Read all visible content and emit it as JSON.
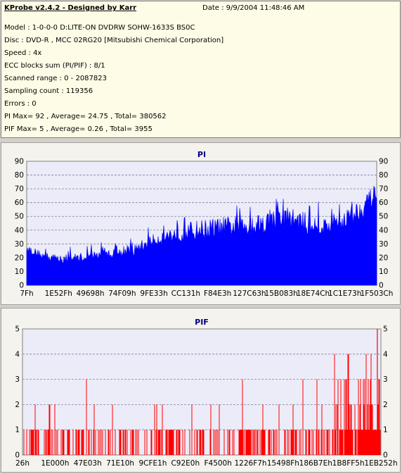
{
  "header": {
    "app_title": "KProbe v2.4.2 - Designed by Karr",
    "date": "Date : 9/9/2004 11:48:46 AM"
  },
  "info_lines": [
    "Model : 1-0-0-0 D:LITE-ON DVDRW SOHW-1633S BS0C",
    "Disc : DVD-R , MCC 02RG20   [Mitsubishi Chemical Corporation]",
    "Speed : 4x",
    "ECC blocks sum (PI/PIF) : 8/1",
    "Scanned range : 0 - 2087823",
    "Sampling count : 119356",
    "Errors : 0",
    "PI Max= 92 , Average= 24.75 , Total= 380562",
    "PIF Max= 5 , Average= 0.26 , Total= 3955"
  ],
  "colors": {
    "pi": "#0000ff",
    "pif": "#ff0000",
    "plot_bg": "#ececf8",
    "title": "#000080"
  },
  "chart_data": [
    {
      "type": "area",
      "title": "PI",
      "ylim": [
        0,
        90
      ],
      "y_ticks": [
        0,
        10,
        20,
        30,
        40,
        50,
        60,
        70,
        80,
        90
      ],
      "x_tick_labels": [
        "7Fh",
        "1E52Fh",
        "49698h",
        "74F09h",
        "9FE33h",
        "CC131h",
        "F84E3h",
        "127C63h",
        "15B083h",
        "18E74Ch",
        "1C1E73h",
        "1F503Ch"
      ],
      "grid": true,
      "x": [
        0,
        5,
        10,
        15,
        20,
        25,
        30,
        35,
        40,
        45,
        50,
        55,
        60,
        65,
        70,
        75,
        80,
        85,
        90,
        95,
        100
      ],
      "y_avg": [
        26,
        20,
        18,
        19,
        21,
        22,
        23,
        30,
        34,
        36,
        38,
        39,
        40,
        42,
        44,
        46,
        42,
        40,
        44,
        52,
        65
      ],
      "y_max": [
        32,
        27,
        25,
        27,
        28,
        30,
        33,
        40,
        47,
        52,
        55,
        57,
        58,
        60,
        62,
        66,
        60,
        57,
        62,
        70,
        80
      ]
    },
    {
      "type": "bar",
      "title": "PIF",
      "ylim": [
        0,
        5
      ],
      "y_ticks": [
        0,
        1,
        2,
        3,
        4,
        5
      ],
      "x_tick_labels": [
        "26h",
        "1E000h",
        "47E03h",
        "71E10h",
        "9CFE1h",
        "C92E0h",
        "F4500h",
        "1226F7h",
        "15498Fh",
        "186B7Eh",
        "1B8FF5h",
        "1EB252h"
      ],
      "grid": true,
      "y_max": 5,
      "x_at_max": 99
    }
  ]
}
